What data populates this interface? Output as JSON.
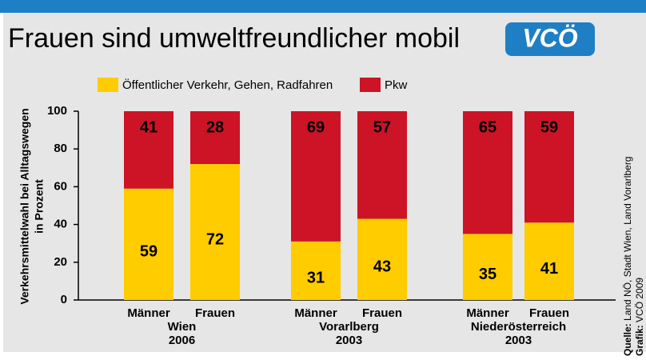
{
  "chart_data": {
    "type": "stacked_bar",
    "title": "Frauen sind umweltfreundlicher mobil",
    "logo": "VCÖ",
    "ylabel": [
      "Verkehrsmittelwahl bei Alltagswegen",
      "in Prozent"
    ],
    "categories": [
      "Männer",
      "Frauen",
      "Männer",
      "Frauen",
      "Männer",
      "Frauen"
    ],
    "groups": [
      {
        "name": "Wien",
        "year": "2006"
      },
      {
        "name": "Vorarlberg",
        "year": "2003"
      },
      {
        "name": "Niederösterreich",
        "year": "2003"
      }
    ],
    "series": [
      {
        "name": "Öffentlicher Verkehr, Gehen, Radfahren",
        "color": "#ffcc00",
        "values": [
          59,
          72,
          31,
          43,
          35,
          41
        ]
      },
      {
        "name": "Pkw",
        "color": "#cc1426",
        "values": [
          41,
          28,
          69,
          57,
          65,
          59
        ]
      }
    ],
    "ylim": [
      0,
      100
    ],
    "yticks": [
      0,
      20,
      40,
      60,
      80,
      100
    ],
    "grid": false,
    "source": {
      "label": "Quelle:",
      "text": "Land NÖ, Stadt Wien, Land Vorarlberg"
    },
    "credit": {
      "label": "Grafik:",
      "text": "VCÖ 2009"
    }
  }
}
